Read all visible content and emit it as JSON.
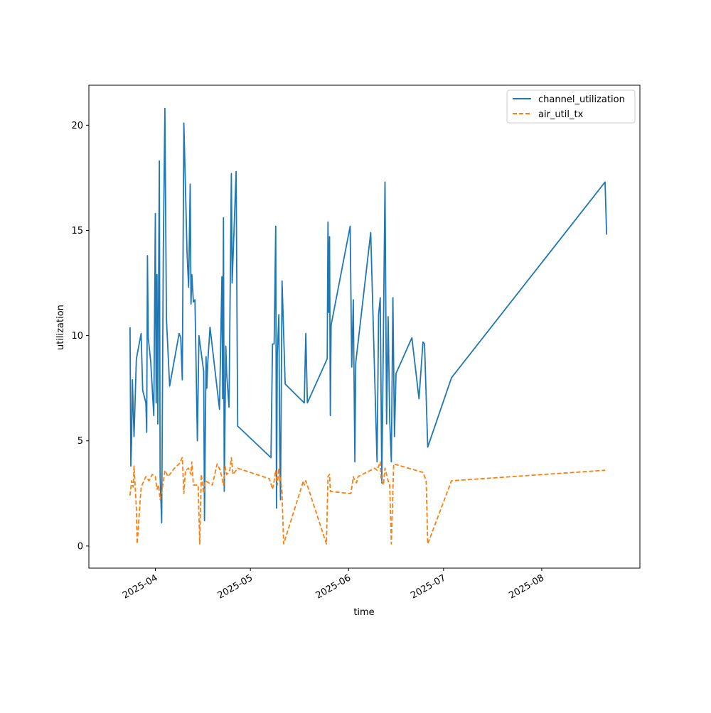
{
  "chart_data": {
    "type": "line",
    "title": "",
    "xlabel": "time",
    "ylabel": "utilization",
    "x_axis": {
      "scale": "date",
      "range": [
        "2025-03-11",
        "2025-09-01"
      ],
      "ticks": [
        {
          "value": "2025-04-01",
          "label": "2025-04"
        },
        {
          "value": "2025-05-01",
          "label": "2025-05"
        },
        {
          "value": "2025-06-01",
          "label": "2025-06"
        },
        {
          "value": "2025-07-01",
          "label": "2025-07"
        },
        {
          "value": "2025-08-01",
          "label": "2025-08"
        }
      ]
    },
    "y_axis": {
      "range": [
        -1.05,
        21.9
      ],
      "ticks": [
        0,
        5,
        10,
        15,
        20
      ]
    },
    "grid": false,
    "legend": {
      "position": "top-right"
    },
    "series": [
      {
        "name": "channel_utilization",
        "color": "#1f77b4",
        "style": "solid",
        "points": [
          [
            "2025-03-24 00:00",
            10.4
          ],
          [
            "2025-03-24 06:00",
            3.8
          ],
          [
            "2025-03-24 12:00",
            5.0
          ],
          [
            "2025-03-24 18:00",
            7.9
          ],
          [
            "2025-03-25 06:00",
            5.2
          ],
          [
            "2025-03-26 00:00",
            8.9
          ],
          [
            "2025-03-27 12:00",
            10.1
          ],
          [
            "2025-03-28 00:00",
            7.4
          ],
          [
            "2025-03-29 00:00",
            6.8
          ],
          [
            "2025-03-29 06:00",
            5.4
          ],
          [
            "2025-03-29 12:00",
            13.8
          ],
          [
            "2025-03-29 18:00",
            9.9
          ],
          [
            "2025-03-30 12:00",
            8.8
          ],
          [
            "2025-03-31 12:00",
            6.2
          ],
          [
            "2025-04-01 00:00",
            15.8
          ],
          [
            "2025-04-01 06:00",
            6.8
          ],
          [
            "2025-04-01 12:00",
            12.9
          ],
          [
            "2025-04-01 18:00",
            5.8
          ],
          [
            "2025-04-02 06:00",
            18.3
          ],
          [
            "2025-04-02 12:00",
            3.3
          ],
          [
            "2025-04-03 00:00",
            1.1
          ],
          [
            "2025-04-03 12:00",
            14.0
          ],
          [
            "2025-04-04 00:00",
            20.8
          ],
          [
            "2025-04-04 12:00",
            10.8
          ],
          [
            "2025-04-05 12:00",
            7.6
          ],
          [
            "2025-04-08 12:00",
            10.1
          ],
          [
            "2025-04-09 00:00",
            9.9
          ],
          [
            "2025-04-09 12:00",
            7.9
          ],
          [
            "2025-04-10 00:00",
            20.1
          ],
          [
            "2025-04-11 00:00",
            13.9
          ],
          [
            "2025-04-11 12:00",
            12.3
          ],
          [
            "2025-04-12 00:00",
            17.2
          ],
          [
            "2025-04-12 06:00",
            11.5
          ],
          [
            "2025-04-12 12:00",
            12.9
          ],
          [
            "2025-04-13 00:00",
            11.6
          ],
          [
            "2025-04-13 12:00",
            11.7
          ],
          [
            "2025-04-14 06:00",
            5.0
          ],
          [
            "2025-04-14 18:00",
            10.0
          ],
          [
            "2025-04-16 06:00",
            8.3
          ],
          [
            "2025-04-16 12:00",
            1.2
          ],
          [
            "2025-04-17 00:00",
            9.0
          ],
          [
            "2025-04-17 06:00",
            7.5
          ],
          [
            "2025-04-17 12:00",
            8.6
          ],
          [
            "2025-04-18 06:00",
            10.4
          ],
          [
            "2025-04-21 06:00",
            6.5
          ],
          [
            "2025-04-22 00:00",
            12.8
          ],
          [
            "2025-04-22 06:00",
            7.0
          ],
          [
            "2025-04-22 12:00",
            15.6
          ],
          [
            "2025-04-22 18:00",
            2.6
          ],
          [
            "2025-04-23 06:00",
            9.5
          ],
          [
            "2025-04-23 12:00",
            8.2
          ],
          [
            "2025-04-24 06:00",
            6.6
          ],
          [
            "2025-04-25 00:00",
            17.7
          ],
          [
            "2025-04-25 06:00",
            12.5
          ],
          [
            "2025-04-26 12:00",
            17.8
          ],
          [
            "2025-04-27 00:00",
            5.7
          ],
          [
            "2025-05-07 12:00",
            4.2
          ],
          [
            "2025-05-08 00:00",
            9.6
          ],
          [
            "2025-05-08 12:00",
            9.6
          ],
          [
            "2025-05-09 00:00",
            15.2
          ],
          [
            "2025-05-09 06:00",
            1.8
          ],
          [
            "2025-05-09 12:00",
            9.1
          ],
          [
            "2025-05-10 00:00",
            11.0
          ],
          [
            "2025-05-10 06:00",
            4.9
          ],
          [
            "2025-05-10 12:00",
            2.2
          ],
          [
            "2025-05-11 00:00",
            12.6
          ],
          [
            "2025-05-12 00:00",
            7.7
          ],
          [
            "2025-05-18 00:00",
            6.8
          ],
          [
            "2025-05-18 12:00",
            10.1
          ],
          [
            "2025-05-19 00:00",
            6.8
          ],
          [
            "2025-05-25 06:00",
            8.9
          ],
          [
            "2025-05-25 12:00",
            15.4
          ],
          [
            "2025-05-25 18:00",
            11.1
          ],
          [
            "2025-05-26 00:00",
            14.7
          ],
          [
            "2025-05-26 06:00",
            6.2
          ],
          [
            "2025-05-26 12:00",
            10.5
          ],
          [
            "2025-06-01 12:00",
            15.2
          ],
          [
            "2025-06-02 00:00",
            8.5
          ],
          [
            "2025-06-02 12:00",
            11.7
          ],
          [
            "2025-06-03 00:00",
            4.0
          ],
          [
            "2025-06-03 06:00",
            8.7
          ],
          [
            "2025-06-08 00:00",
            14.9
          ],
          [
            "2025-06-10 00:00",
            4.0
          ],
          [
            "2025-06-10 12:00",
            11.0
          ],
          [
            "2025-06-11 00:00",
            11.8
          ],
          [
            "2025-06-11 12:00",
            3.0
          ],
          [
            "2025-06-12 00:00",
            9.9
          ],
          [
            "2025-06-12 12:00",
            17.3
          ],
          [
            "2025-06-13 00:00",
            5.8
          ],
          [
            "2025-06-13 12:00",
            10.9
          ],
          [
            "2025-06-14 00:00",
            6.0
          ],
          [
            "2025-06-14 12:00",
            4.0
          ],
          [
            "2025-06-15 00:00",
            11.8
          ],
          [
            "2025-06-15 12:00",
            5.2
          ],
          [
            "2025-06-16 00:00",
            8.2
          ],
          [
            "2025-06-21 00:00",
            9.9
          ],
          [
            "2025-06-23 06:00",
            7.0
          ],
          [
            "2025-06-24 12:00",
            9.7
          ],
          [
            "2025-06-25 00:00",
            9.6
          ],
          [
            "2025-06-26 00:00",
            4.7
          ],
          [
            "2025-07-03 12:00",
            8.0
          ],
          [
            "2025-08-21 00:00",
            17.3
          ],
          [
            "2025-08-21 12:00",
            14.8
          ]
        ]
      },
      {
        "name": "air_util_tx",
        "color": "#ff7f0e",
        "style": "dashed",
        "points": [
          [
            "2025-03-24 00:00",
            2.4
          ],
          [
            "2025-03-24 12:00",
            3.1
          ],
          [
            "2025-03-25 00:00",
            2.8
          ],
          [
            "2025-03-25 06:00",
            3.8
          ],
          [
            "2025-03-26 00:00",
            1.8
          ],
          [
            "2025-03-26 06:00",
            0.1
          ],
          [
            "2025-03-27 12:00",
            2.8
          ],
          [
            "2025-03-29 00:00",
            3.3
          ],
          [
            "2025-03-30 00:00",
            3.1
          ],
          [
            "2025-03-31 00:00",
            3.4
          ],
          [
            "2025-04-01 00:00",
            3.3
          ],
          [
            "2025-04-01 12:00",
            2.7
          ],
          [
            "2025-04-02 00:00",
            2.9
          ],
          [
            "2025-04-02 12:00",
            2.2
          ],
          [
            "2025-04-03 00:00",
            2.5
          ],
          [
            "2025-04-04 00:00",
            3.6
          ],
          [
            "2025-04-05 00:00",
            3.3
          ],
          [
            "2025-04-07 00:00",
            3.7
          ],
          [
            "2025-04-08 12:00",
            3.9
          ],
          [
            "2025-04-09 12:00",
            4.2
          ],
          [
            "2025-04-10 00:00",
            2.5
          ],
          [
            "2025-04-10 12:00",
            3.6
          ],
          [
            "2025-04-11 12:00",
            3.7
          ],
          [
            "2025-04-12 06:00",
            3.4
          ],
          [
            "2025-04-12 12:00",
            4.0
          ],
          [
            "2025-04-13 00:00",
            2.9
          ],
          [
            "2025-04-14 12:00",
            2.9
          ],
          [
            "2025-04-15 00:00",
            0.1
          ],
          [
            "2025-04-15 12:00",
            3.4
          ],
          [
            "2025-04-16 06:00",
            2.5
          ],
          [
            "2025-04-16 18:00",
            3.1
          ],
          [
            "2025-04-19 00:00",
            2.9
          ],
          [
            "2025-04-20 12:00",
            3.9
          ],
          [
            "2025-04-21 12:00",
            3.6
          ],
          [
            "2025-04-22 12:00",
            2.9
          ],
          [
            "2025-04-23 00:00",
            3.8
          ],
          [
            "2025-04-23 12:00",
            3.4
          ],
          [
            "2025-04-24 12:00",
            3.6
          ],
          [
            "2025-04-25 00:00",
            4.2
          ],
          [
            "2025-04-25 12:00",
            3.4
          ],
          [
            "2025-04-27 00:00",
            3.7
          ],
          [
            "2025-05-07 00:00",
            3.2
          ],
          [
            "2025-05-08 00:00",
            2.7
          ],
          [
            "2025-05-08 12:00",
            3.1
          ],
          [
            "2025-05-09 00:00",
            3.6
          ],
          [
            "2025-05-09 12:00",
            2.9
          ],
          [
            "2025-05-10 00:00",
            3.7
          ],
          [
            "2025-05-10 06:00",
            3.2
          ],
          [
            "2025-05-10 12:00",
            3.3
          ],
          [
            "2025-05-11 00:00",
            2.5
          ],
          [
            "2025-05-11 12:00",
            0.1
          ],
          [
            "2025-05-17 18:00",
            3.1
          ],
          [
            "2025-05-18 00:00",
            2.9
          ],
          [
            "2025-05-18 12:00",
            3.1
          ],
          [
            "2025-05-25 00:00",
            0.1
          ],
          [
            "2025-05-25 12:00",
            3.3
          ],
          [
            "2025-05-26 00:00",
            3.4
          ],
          [
            "2025-05-26 06:00",
            2.6
          ],
          [
            "2025-06-01 00:00",
            2.5
          ],
          [
            "2025-06-01 18:00",
            2.5
          ],
          [
            "2025-06-02 12:00",
            3.3
          ],
          [
            "2025-06-03 00:00",
            3.1
          ],
          [
            "2025-06-03 12:00",
            3.0
          ],
          [
            "2025-06-04 00:00",
            3.3
          ],
          [
            "2025-06-09 06:00",
            3.7
          ],
          [
            "2025-06-10 00:00",
            3.6
          ],
          [
            "2025-06-11 00:00",
            4.0
          ],
          [
            "2025-06-11 06:00",
            3.2
          ],
          [
            "2025-06-12 00:00",
            2.9
          ],
          [
            "2025-06-12 12:00",
            3.7
          ],
          [
            "2025-06-13 12:00",
            3.1
          ],
          [
            "2025-06-14 00:00",
            2.9
          ],
          [
            "2025-06-14 12:00",
            0.1
          ],
          [
            "2025-06-15 06:00",
            3.9
          ],
          [
            "2025-06-22 06:00",
            3.6
          ],
          [
            "2025-06-24 12:00",
            3.5
          ],
          [
            "2025-06-25 12:00",
            3.1
          ],
          [
            "2025-06-26 00:00",
            0.1
          ],
          [
            "2025-06-26 12:00",
            0.3
          ],
          [
            "2025-07-03 12:00",
            3.1
          ],
          [
            "2025-08-21 00:00",
            3.6
          ]
        ]
      }
    ]
  }
}
